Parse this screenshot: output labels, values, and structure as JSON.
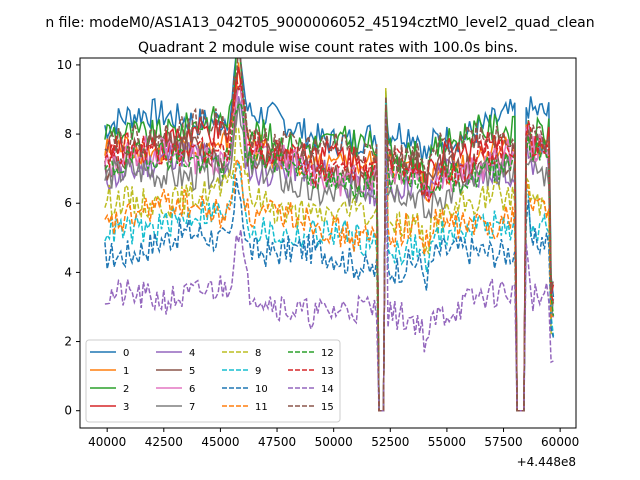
{
  "suptitle": "n file: modeM0/AS1A13_042T05_9000006052_45194cztM0_level2_quad_clean",
  "chart_data": {
    "type": "line",
    "title": "Quadrant 2 module wise count rates with 100.0s bins.",
    "xlabel": "",
    "ylabel": "",
    "x_offset_label": "+4.448e8",
    "xlim": [
      38800,
      60700
    ],
    "ylim": [
      -0.5,
      10.2
    ],
    "x_ticks": [
      40000,
      42500,
      45000,
      47500,
      50000,
      52500,
      55000,
      57500,
      60000
    ],
    "x_tick_labels": [
      "40000",
      "42500",
      "45000",
      "47500",
      "50000",
      "52500",
      "55000",
      "57500",
      "60000"
    ],
    "y_ticks": [
      0,
      2,
      4,
      6,
      8,
      10
    ],
    "y_tick_labels": [
      "0",
      "2",
      "4",
      "6",
      "8",
      "10"
    ],
    "grid": false,
    "legend_position": "lower-left",
    "legend_columns": 4,
    "x_start": 39900,
    "x_end": 59700,
    "bin_seconds": 100,
    "common_features": {
      "flare_peak_x": 45800,
      "gap1": [
        52000,
        52250
      ],
      "spike1_x": 52300,
      "gap2": [
        58100,
        58450
      ],
      "spike2_x": 58550
    },
    "series": [
      {
        "name": "0",
        "color": "#1f77b4",
        "style": "solid",
        "level": 8.2
      },
      {
        "name": "1",
        "color": "#ff7f0e",
        "style": "solid",
        "level": 7.3
      },
      {
        "name": "2",
        "color": "#2ca02c",
        "style": "solid",
        "level": 7.9
      },
      {
        "name": "3",
        "color": "#d62728",
        "style": "solid",
        "level": 7.5
      },
      {
        "name": "4",
        "color": "#9467bd",
        "style": "solid",
        "level": 6.9
      },
      {
        "name": "5",
        "color": "#8c564b",
        "style": "solid",
        "level": 7.2
      },
      {
        "name": "6",
        "color": "#e377c2",
        "style": "solid",
        "level": 7.1
      },
      {
        "name": "7",
        "color": "#7f7f7f",
        "style": "solid",
        "level": 6.6
      },
      {
        "name": "8",
        "color": "#bcbd22",
        "style": "dashed",
        "level": 5.9
      },
      {
        "name": "9",
        "color": "#17becf",
        "style": "dashed",
        "level": 5.2
      },
      {
        "name": "10",
        "color": "#1f77b4",
        "style": "dashed",
        "level": 4.6
      },
      {
        "name": "11",
        "color": "#ff7f0e",
        "style": "dashed",
        "level": 5.5
      },
      {
        "name": "12",
        "color": "#2ca02c",
        "style": "dashed",
        "level": 7.0
      },
      {
        "name": "13",
        "color": "#d62728",
        "style": "dashed",
        "level": 7.3
      },
      {
        "name": "14",
        "color": "#9467bd",
        "style": "dashed",
        "level": 3.1
      },
      {
        "name": "15",
        "color": "#8c564b",
        "style": "dashed",
        "level": 7.8
      }
    ]
  }
}
